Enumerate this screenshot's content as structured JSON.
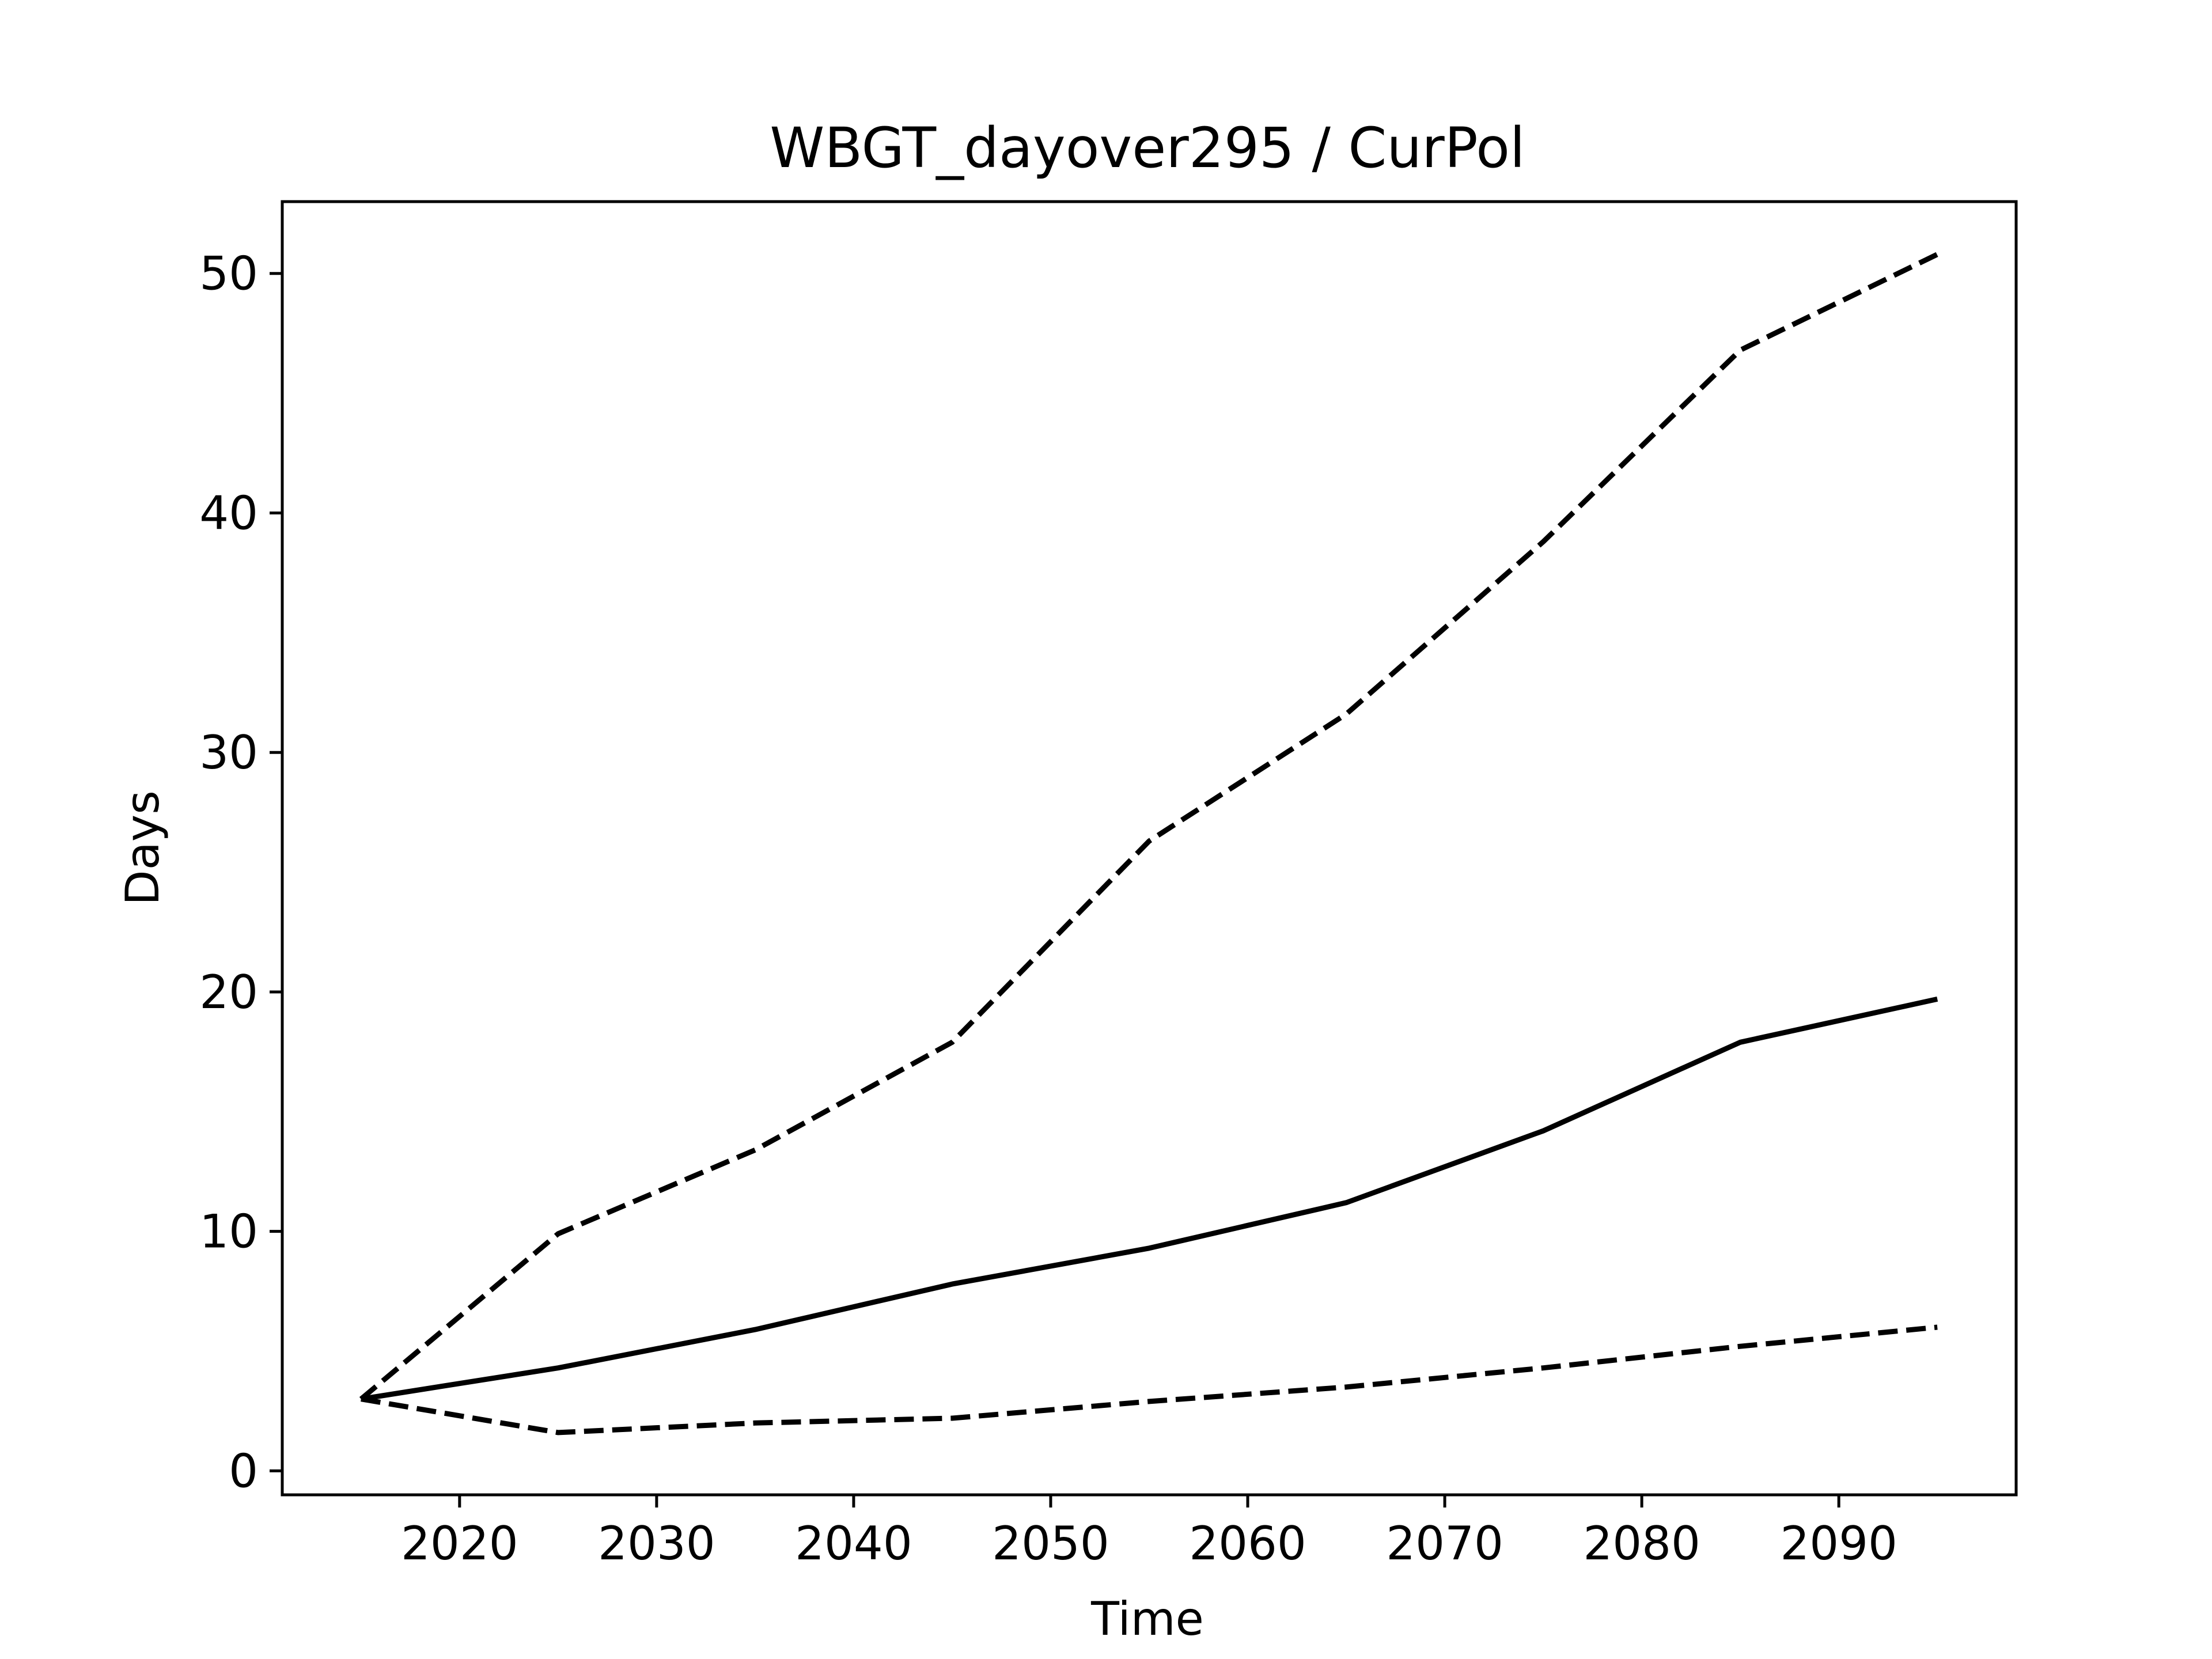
{
  "chart_data": {
    "type": "line",
    "title": "WBGT_dayover295 / CurPol",
    "xlabel": "Time",
    "ylabel": "Days",
    "xlim": [
      2011,
      2099
    ],
    "ylim": [
      -1,
      53
    ],
    "xticks": [
      2020,
      2030,
      2040,
      2050,
      2060,
      2070,
      2080,
      2090
    ],
    "yticks": [
      0,
      10,
      20,
      30,
      40,
      50
    ],
    "grid": false,
    "legend": "none",
    "x": [
      2015,
      2025,
      2035,
      2045,
      2055,
      2065,
      2075,
      2085,
      2095
    ],
    "series": [
      {
        "style": "solid",
        "color": "#000000",
        "values": [
          3.0,
          4.3,
          5.9,
          7.8,
          9.3,
          11.2,
          14.2,
          17.9,
          19.7
        ]
      },
      {
        "style": "dashed",
        "color": "#000000",
        "values": [
          3.0,
          9.9,
          13.4,
          17.9,
          26.3,
          31.6,
          38.8,
          46.8,
          50.8
        ]
      },
      {
        "style": "dashed",
        "color": "#000000",
        "values": [
          3.0,
          1.6,
          2.0,
          2.2,
          2.9,
          3.5,
          4.3,
          5.2,
          6.0
        ]
      }
    ]
  }
}
